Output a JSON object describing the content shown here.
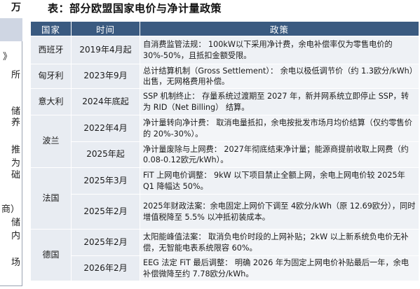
{
  "left_fragments": {
    "head": "万",
    "f1": "》",
    "f2": "所",
    "f3": "储",
    "f4": "养",
    "f5": "推",
    "f6": "为",
    "f7": "础",
    "f8": "商）",
    "f9": "储",
    "f10": "内",
    "f11": "场"
  },
  "title": "表：部分欧盟国家电价与净计量政策",
  "headers": {
    "country": "国家",
    "time": "时间",
    "policy": "政策"
  },
  "rows": [
    {
      "country": "西班牙",
      "time": "2019年4月起",
      "policy": "自消费监管法规： 100kW以下采用净计费，余电补偿率仅为零售电价的 30%-50%，且抵扣金额受限。"
    },
    {
      "country": "匈牙利",
      "time": "2023年9月",
      "policy": "总计结算机制（Gross Settlement）： 余电以极低调节价（约 1.3欧分/kWh）出售，无网格费用补偿。"
    },
    {
      "country": "意大利",
      "time": "2024年底起",
      "policy": "SSP 机制终止： 存量系统过渡期至 2027 年，新并网系统立即停止 SSP，转为 RID（Net Billing） 结算。"
    },
    {
      "country": "波兰",
      "time": "2022年4月",
      "policy": "净计量转向净计费： 取消电量抵扣，余电按批发市场月均价结算（仅约零售价的 20%-30%）。"
    },
    {
      "country": "",
      "time": "2025年起",
      "policy": "净计量废除与上网费： 2027年彻底结束净计量；能源商提前收取上网费（约 0.08-0.12欧元/kWh）。"
    },
    {
      "country": "法国",
      "time": "2025年3月",
      "policy": "FiT 上网电价调整： 9kW 以下项目禁止全额上网，余电上网电价较 2025年 Q1 降幅达 50%。"
    },
    {
      "country": "",
      "time": "2025年2月",
      "policy": "2025年财政法案：余电固定上网价下调至 4欧分/kWh（原 12.69欧分），同时增值税降至 5.5% 以冲抵初装成本。"
    },
    {
      "country": "德国",
      "time": "2025年2月",
      "policy": "太阳能峰值法案： 取消负电价时段的上网补贴；2kW 以上新系统负电价无补偿，无智能电表系统限容 60%。"
    },
    {
      "country": "",
      "time": "2026年2月",
      "policy": "EEG 法定 FiT 最后调整： 明确 2026 年为固定上网电价补贴最后一年，余电补偿微降至约 7.78欧分/kWh。"
    }
  ]
}
